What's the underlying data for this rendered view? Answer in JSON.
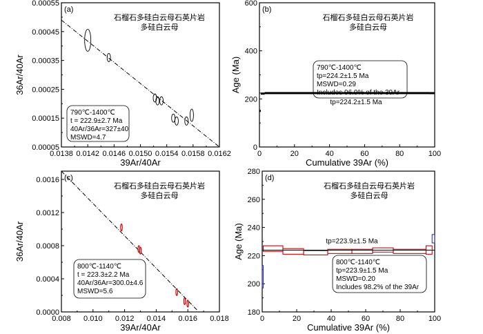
{
  "chart_data": [
    {
      "id": "a",
      "type": "scatter",
      "panel_label": "(a)",
      "title_line1": "石榴石多硅白云母石英片岩",
      "title_line2": "多硅白云母",
      "xlabel": "39Ar/40Ar",
      "ylabel": "36Ar/40Ar",
      "xlim": [
        0.0138,
        0.0162
      ],
      "ylim": [
        5e-05,
        0.00055
      ],
      "xticks": [
        "0.0138",
        "0.0142",
        "0.0146",
        "0.0150",
        "0.0154",
        "0.0158",
        "0.0162"
      ],
      "yticks": [
        "0.00005",
        "0.00015",
        "0.00025",
        "0.00035",
        "0.00045",
        "0.00055"
      ],
      "points": [
        {
          "x": 0.0142,
          "y": 0.00042
        },
        {
          "x": 0.01452,
          "y": 0.00036
        },
        {
          "x": 0.01522,
          "y": 0.00022
        },
        {
          "x": 0.01526,
          "y": 0.00021
        },
        {
          "x": 0.01532,
          "y": 0.00021
        },
        {
          "x": 0.0155,
          "y": 0.00015
        },
        {
          "x": 0.01555,
          "y": 0.00014
        },
        {
          "x": 0.0157,
          "y": 0.00014
        },
        {
          "x": 0.01578,
          "y": 0.00016
        }
      ],
      "isochron": {
        "x1": 0.0138,
        "y1": 0.00049,
        "x2": 0.0162,
        "y2": 5e-05
      },
      "annotation": [
        "790℃-1400℃",
        "t = 222.9±2.7 Ma",
        "40Ar/36Ar=327±40",
        "MSWD=4.7"
      ]
    },
    {
      "id": "b",
      "type": "line",
      "panel_label": "(b)",
      "title_line1": "石榴石多硅白云母石英片岩",
      "title_line2": "多硅白云母",
      "xlabel": "Cumulative 39Ar (%)",
      "ylabel": "Age (Ma)",
      "xlim": [
        0,
        100
      ],
      "ylim": [
        0,
        600
      ],
      "xticks": [
        "0",
        "20",
        "40",
        "60",
        "80",
        "100"
      ],
      "yticks": [
        "0",
        "200",
        "400",
        "600"
      ],
      "plateau_age": 224.2,
      "plateau_label": "tp=224.2±1.5 Ma",
      "steps": [
        {
          "x0": 0,
          "x1": 0.8,
          "age": 150
        },
        {
          "x0": 0.8,
          "x1": 3,
          "age": 222
        },
        {
          "x0": 3,
          "x1": 97,
          "age": 224.2
        },
        {
          "x0": 97,
          "x1": 100,
          "age": 224
        }
      ],
      "annotation": [
        "790℃-1400℃",
        "tp=224.2±1.5 Ma",
        "MSWD=0.29",
        "Includes 96.9% of the 39Ar"
      ]
    },
    {
      "id": "c",
      "type": "scatter",
      "panel_label": "(c)",
      "title_line1": "石榴石多硅白云母石英片岩",
      "title_line2": "多硅白云母",
      "xlabel": "39Ar/40Ar",
      "ylabel": "36Ar/40Ar",
      "xlim": [
        0.008,
        0.018
      ],
      "ylim": [
        0.0,
        0.0017
      ],
      "xticks": [
        "0.008",
        "0.010",
        "0.012",
        "0.014",
        "0.016",
        "0.018"
      ],
      "yticks": [
        "0.0000",
        "0.0004",
        "0.0008",
        "0.0012",
        "0.0016"
      ],
      "points": [
        {
          "x": 0.0118,
          "y": 0.00102
        },
        {
          "x": 0.0129,
          "y": 0.00076
        },
        {
          "x": 0.013,
          "y": 0.00074
        },
        {
          "x": 0.0153,
          "y": 0.00024
        },
        {
          "x": 0.0158,
          "y": 0.00013
        },
        {
          "x": 0.016,
          "y": 0.0001
        }
      ],
      "isochron": {
        "x1": 0.008,
        "y1": 0.0017,
        "x2": 0.0166,
        "y2": 2e-05
      },
      "annotation": [
        "800℃-1140℃",
        "t = 223.3±2.2 Ma",
        "40Ar/36Ar=300.0±4.6",
        "MSWD=5.6"
      ]
    },
    {
      "id": "d",
      "type": "line",
      "panel_label": "(d)",
      "title_line1": "石榴石多硅白云母石英片岩",
      "title_line2": "多硅白云母",
      "xlabel": "Cumulative 39Ar (%)",
      "ylabel": "Age (Ma)",
      "xlim": [
        0,
        100
      ],
      "ylim": [
        180,
        280
      ],
      "xticks": [
        "0",
        "20",
        "40",
        "60",
        "80",
        "100"
      ],
      "yticks": [
        "180",
        "200",
        "220",
        "240",
        "260",
        "280"
      ],
      "plateau_age": 223.9,
      "plateau_label": "tp=223.9±1.5 Ma",
      "steps": [
        {
          "x0": 0,
          "x1": 0.6,
          "age": 205,
          "err": 8
        },
        {
          "x0": 0.6,
          "x1": 12,
          "age": 225,
          "err": 2
        },
        {
          "x0": 12,
          "x1": 24,
          "age": 223,
          "err": 2
        },
        {
          "x0": 24,
          "x1": 38,
          "age": 222,
          "err": 1.5
        },
        {
          "x0": 38,
          "x1": 52,
          "age": 223,
          "err": 1.5
        },
        {
          "x0": 52,
          "x1": 64,
          "age": 223,
          "err": 1.5
        },
        {
          "x0": 64,
          "x1": 76,
          "age": 224,
          "err": 1.5
        },
        {
          "x0": 76,
          "x1": 95,
          "age": 223,
          "err": 1.5
        },
        {
          "x0": 95,
          "x1": 98.5,
          "age": 224,
          "err": 3
        },
        {
          "x0": 98.5,
          "x1": 100,
          "age": 232,
          "err": 3
        }
      ],
      "annotation": [
        "800℃-1140℃",
        "tp=223.9±1.5 Ma",
        "MSWD=0.20",
        "Includes 98.2% of the 39Ar"
      ]
    }
  ]
}
